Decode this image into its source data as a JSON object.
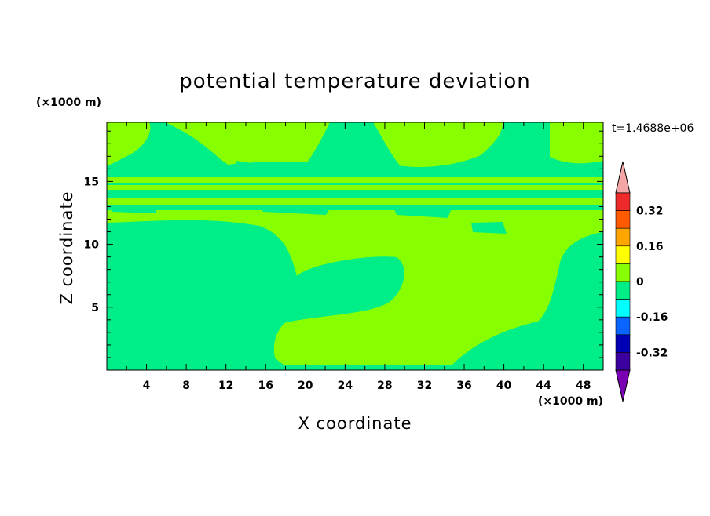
{
  "chart_data": {
    "type": "heatmap",
    "title": "potential temperature deviation",
    "xlabel": "X coordinate",
    "ylabel": "Z coordinate",
    "x_unit": "(×1000 m)",
    "y_unit": "(×1000 m)",
    "time_label": "t=1.4688e+06",
    "xlim": [
      0,
      50
    ],
    "ylim": [
      0,
      19.7
    ],
    "x_ticks": [
      "4",
      "8",
      "12",
      "16",
      "20",
      "24",
      "28",
      "32",
      "36",
      "40",
      "44",
      "48"
    ],
    "y_ticks": [
      "5",
      "10",
      "15"
    ],
    "colorbar": {
      "levels": [
        -0.4,
        -0.32,
        -0.24,
        -0.16,
        -0.08,
        0,
        0.08,
        0.16,
        0.24,
        0.32,
        0.4
      ],
      "labels": [
        "0.32",
        "0.16",
        "0",
        "-0.16",
        "-0.32"
      ],
      "colors": [
        "#f4a5a5",
        "#ee2a2a",
        "#ff5a00",
        "#ffa500",
        "#ffff00",
        "#88ff00",
        "#00ee88",
        "#00ffff",
        "#0a64ff",
        "#0000b4",
        "#3c00a0",
        "#7a00b4"
      ]
    },
    "fields": {
      "dominant_positive_color": "#88ff00",
      "dominant_near_zero_color": "#00ee88"
    }
  }
}
